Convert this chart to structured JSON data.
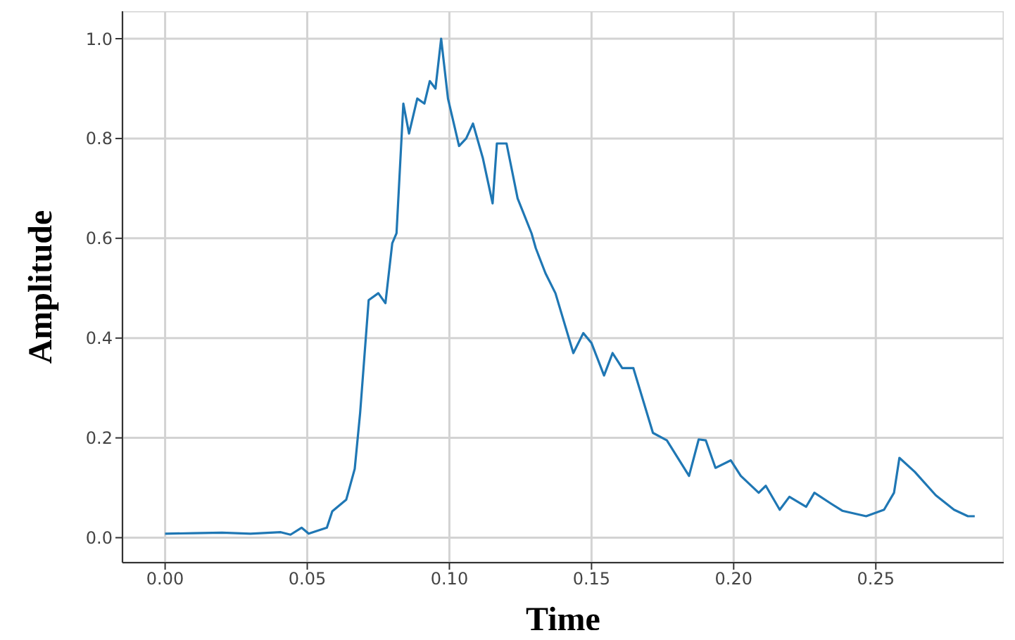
{
  "chart_data": {
    "type": "line",
    "xlabel": "Time",
    "ylabel": "Amplitude",
    "x": [
      0,
      0.01,
      0.02,
      0.03,
      0.0407,
      0.0441,
      0.048,
      0.0505,
      0.0569,
      0.0588,
      0.0637,
      0.0667,
      0.0686,
      0.0716,
      0.075,
      0.0775,
      0.0799,
      0.0814,
      0.0838,
      0.0858,
      0.0887,
      0.0912,
      0.0931,
      0.0951,
      0.0971,
      0.0995,
      0.1034,
      0.1059,
      0.1083,
      0.1118,
      0.1152,
      0.1167,
      0.1201,
      0.124,
      0.1289,
      0.1304,
      0.1338,
      0.1373,
      0.1436,
      0.1471,
      0.15,
      0.1544,
      0.1574,
      0.1608,
      0.1647,
      0.1716,
      0.1765,
      0.1843,
      0.1877,
      0.1902,
      0.1936,
      0.199,
      0.2025,
      0.2088,
      0.2113,
      0.2162,
      0.2196,
      0.2255,
      0.2284,
      0.2343,
      0.2382,
      0.2466,
      0.2529,
      0.2564,
      0.2583,
      0.2637,
      0.2711,
      0.2775,
      0.2824,
      0.2848
    ],
    "series": [
      {
        "color": "#1f77b4",
        "values": [
          0.008,
          0.009,
          0.01,
          0.008,
          0.011,
          0.006,
          0.02,
          0.008,
          0.02,
          0.053,
          0.076,
          0.138,
          0.25,
          0.476,
          0.49,
          0.47,
          0.59,
          0.61,
          0.87,
          0.81,
          0.88,
          0.87,
          0.915,
          0.9,
          1.0,
          0.88,
          0.785,
          0.8,
          0.83,
          0.76,
          0.67,
          0.79,
          0.79,
          0.68,
          0.61,
          0.58,
          0.53,
          0.49,
          0.37,
          0.41,
          0.39,
          0.325,
          0.37,
          0.34,
          0.34,
          0.21,
          0.195,
          0.124,
          0.197,
          0.195,
          0.14,
          0.155,
          0.124,
          0.09,
          0.104,
          0.056,
          0.082,
          0.062,
          0.09,
          0.068,
          0.054,
          0.043,
          0.056,
          0.09,
          0.16,
          0.132,
          0.085,
          0.056,
          0.043,
          0.043
        ]
      }
    ],
    "xlim": [
      -0.015,
      0.295
    ],
    "xticks": [
      {
        "value": 0,
        "label": "0.00"
      },
      {
        "value": 0.05,
        "label": "0.05"
      },
      {
        "value": 0.1,
        "label": "0.10"
      },
      {
        "value": 0.15,
        "label": "0.15"
      },
      {
        "value": 0.2,
        "label": "0.20"
      },
      {
        "value": 0.25,
        "label": "0.25"
      }
    ],
    "ylim": [
      -0.05,
      1.055
    ],
    "yticks": [
      {
        "value": 0,
        "label": "0.0"
      },
      {
        "value": 0.2,
        "label": "0.2"
      },
      {
        "value": 0.4,
        "label": "0.4"
      },
      {
        "value": 0.6,
        "label": "0.6"
      },
      {
        "value": 0.8,
        "label": "0.8"
      },
      {
        "value": 1,
        "label": "1.0"
      }
    ],
    "grid": true,
    "line_style": "solid",
    "marker": "none"
  }
}
